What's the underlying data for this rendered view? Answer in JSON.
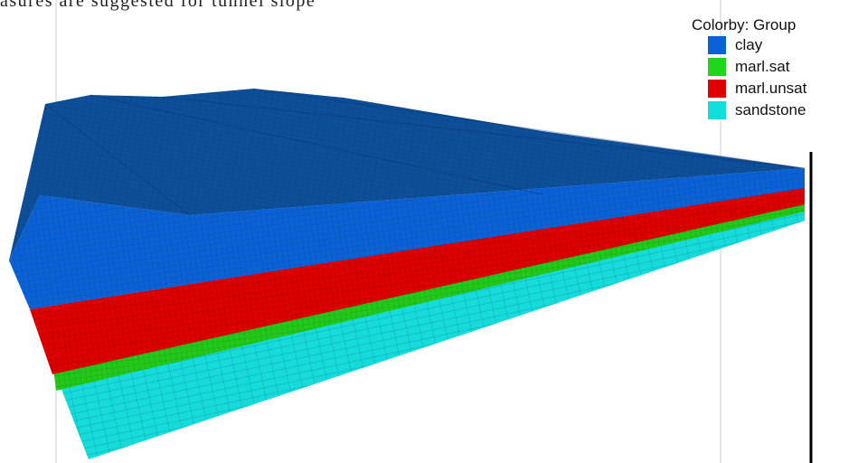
{
  "caption_fragment": "asures are suggested for tunnel slope",
  "legend": {
    "title": "Colorby: Group",
    "items": [
      {
        "label": "clay",
        "color": "#0a62d8"
      },
      {
        "label": "marl.sat",
        "color": "#1fd61a"
      },
      {
        "label": "marl.unsat",
        "color": "#e00000"
      },
      {
        "label": "sandstone",
        "color": "#12dede"
      }
    ]
  },
  "colors": {
    "clay_top": "#0d4f99",
    "clay_side": "#0b62d6",
    "marl_unsat": "#dc0000",
    "marl_sat": "#22c81a",
    "sandstone": "#16dbdb",
    "mesh_line": "#000000"
  }
}
